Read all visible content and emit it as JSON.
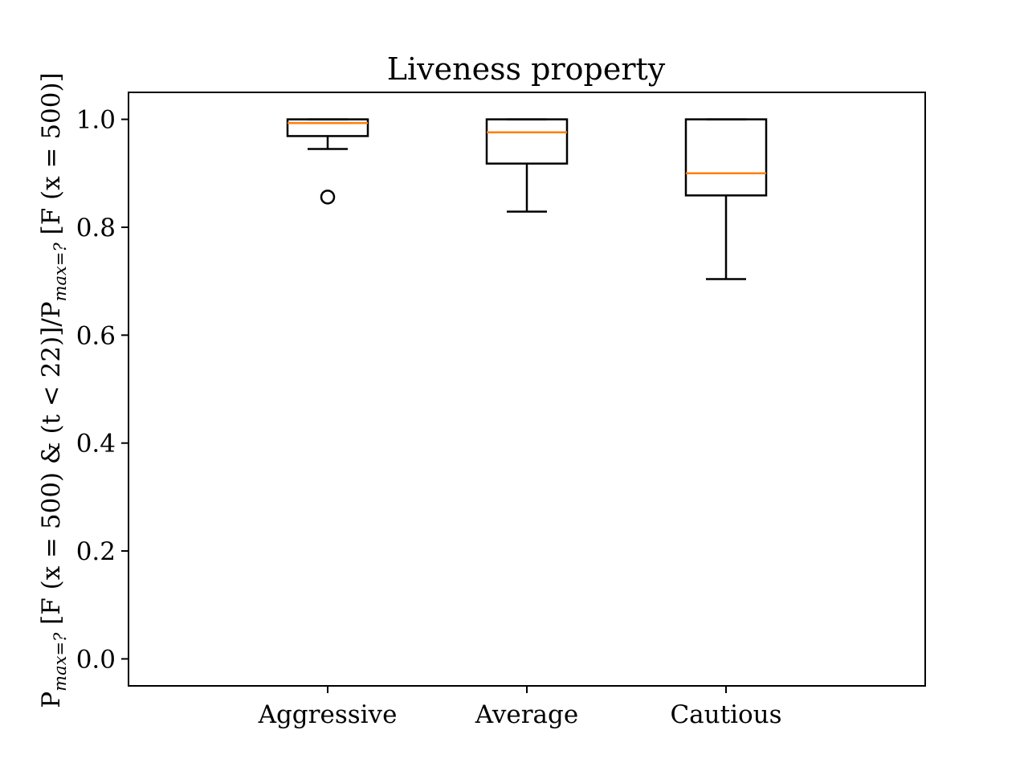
{
  "chart_data": {
    "type": "box",
    "title": "Liveness property",
    "xlabel": "",
    "ylabel": {
      "prefix": "P",
      "prefix_sub": "max=?",
      "middle": " [F (x = 500) & (t < 22)]/P",
      "middle_sub": "max=?",
      "suffix": " [F (x = 500)]"
    },
    "ylim": [
      -0.05,
      1.05
    ],
    "yticks": [
      0.0,
      0.2,
      0.4,
      0.6,
      0.8,
      1.0
    ],
    "ytick_labels": [
      "0.0",
      "0.2",
      "0.4",
      "0.6",
      "0.8",
      "1.0"
    ],
    "grid": false,
    "categories": [
      "Aggressive",
      "Average",
      "Cautious"
    ],
    "boxes": [
      {
        "category": "Aggressive",
        "whisker_low": 0.945,
        "q1": 0.969,
        "median": 0.993,
        "q3": 1.0,
        "whisker_high": 1.0,
        "outliers": [
          0.856
        ]
      },
      {
        "category": "Average",
        "whisker_low": 0.829,
        "q1": 0.918,
        "median": 0.976,
        "q3": 1.0,
        "whisker_high": 1.0,
        "outliers": []
      },
      {
        "category": "Cautious",
        "whisker_low": 0.704,
        "q1": 0.859,
        "median": 0.9,
        "q3": 1.0,
        "whisker_high": 1.0,
        "outliers": []
      }
    ],
    "colors": {
      "box": "#000000",
      "median": "#ff7f0e",
      "axes": "#000000",
      "background": "#ffffff"
    }
  }
}
